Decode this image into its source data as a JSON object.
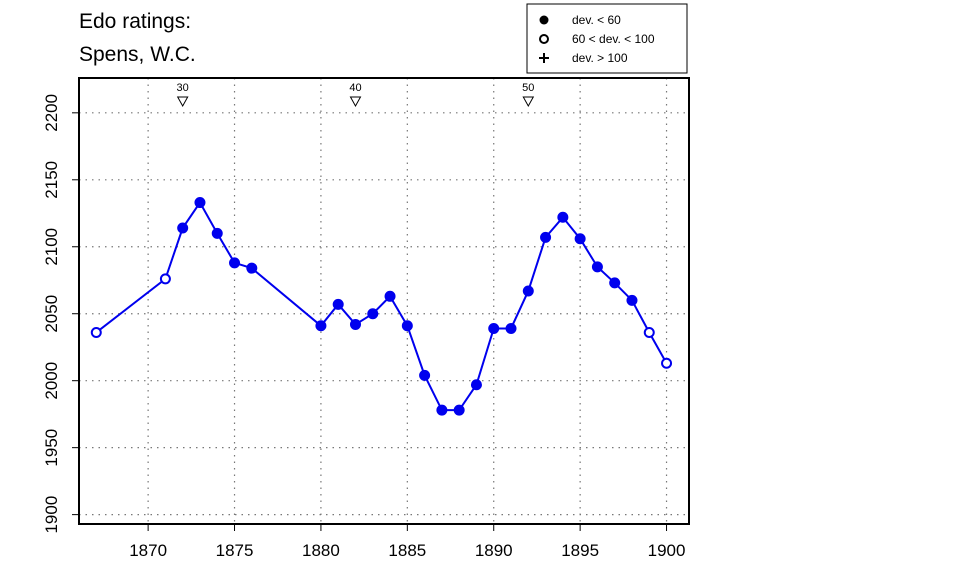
{
  "chart_data": {
    "type": "line",
    "title": "Edo ratings:",
    "subtitle": "Spens, W.C.",
    "xlim": [
      1866,
      1901.3
    ],
    "ylim": [
      1893,
      2226
    ],
    "x_ticks": [
      "1870",
      "1875",
      "1880",
      "1885",
      "1890",
      "1895",
      "1900"
    ],
    "y_ticks": [
      "1900",
      "1950",
      "2000",
      "2050",
      "2100",
      "2150",
      "2200"
    ],
    "grid": true,
    "line_color": "#0000ee",
    "series": [
      {
        "x": [
          1867,
          1871,
          1872,
          1873,
          1874,
          1875,
          1876,
          1880,
          1881,
          1882,
          1883,
          1884,
          1885,
          1886,
          1887,
          1888,
          1889,
          1890,
          1891,
          1892,
          1893,
          1894,
          1895,
          1896,
          1897,
          1898,
          1899,
          1900
        ],
        "y": [
          2036,
          2076,
          2114,
          2133,
          2110,
          2088,
          2084,
          2041,
          2057,
          2042,
          2050,
          2063,
          2041,
          2004,
          1978,
          1978,
          1997,
          2039,
          2039,
          2067,
          2107,
          2122,
          2106,
          2085,
          2073,
          2060,
          2036,
          2013
        ],
        "markers": [
          "open",
          "open",
          "filled",
          "filled",
          "filled",
          "filled",
          "filled",
          "filled",
          "filled",
          "filled",
          "filled",
          "filled",
          "filled",
          "filled",
          "filled",
          "filled",
          "filled",
          "filled",
          "filled",
          "filled",
          "filled",
          "filled",
          "filled",
          "filled",
          "filled",
          "filled",
          "open",
          "open"
        ]
      }
    ],
    "game_markers": [
      {
        "x": 1872,
        "label": "30"
      },
      {
        "x": 1882,
        "label": "40"
      },
      {
        "x": 1892,
        "label": "50"
      }
    ],
    "legend": {
      "position": "top-right",
      "items": [
        {
          "symbol": "filled",
          "label": "dev. < 60"
        },
        {
          "symbol": "open",
          "label": "60 < dev. < 100"
        },
        {
          "symbol": "plus",
          "label": "dev. > 100"
        }
      ]
    }
  }
}
